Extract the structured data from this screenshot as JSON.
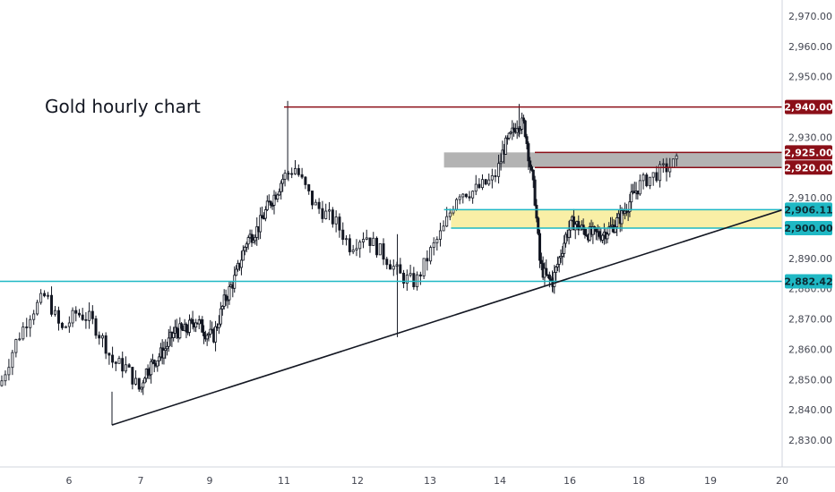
{
  "chart_data": {
    "type": "candlestick",
    "title": "Gold hourly chart",
    "xlabel": "",
    "ylabel": "",
    "ylim": [
      2822,
      2980
    ],
    "xlim": [
      5.1,
      20.0
    ],
    "y_ticks": [
      "2,830.00",
      "2,840.00",
      "2,850.00",
      "2,860.00",
      "2,870.00",
      "2,880.00",
      "2,890.00",
      "2,900.00",
      "2,910.00",
      "2,920.00",
      "2,930.00",
      "2,940.00",
      "2,950.00",
      "2,960.00",
      "2,970.00"
    ],
    "y_tick_values": [
      2830,
      2840,
      2850,
      2860,
      2870,
      2880,
      2890,
      2900,
      2910,
      2920,
      2930,
      2940,
      2950,
      2960,
      2970
    ],
    "x_ticks": [
      "6",
      "7",
      "9",
      "11",
      "12",
      "13",
      "14",
      "16",
      "18",
      "19",
      "20"
    ],
    "x_tick_values": [
      6,
      7,
      9,
      11,
      12,
      13,
      14,
      16,
      18,
      19,
      20
    ],
    "grid": false,
    "price_path": [
      [
        5.1,
        2848
      ],
      [
        5.3,
        2862
      ],
      [
        5.5,
        2872
      ],
      [
        5.7,
        2878
      ],
      [
        5.9,
        2866
      ],
      [
        6.1,
        2872
      ],
      [
        6.3,
        2870
      ],
      [
        6.5,
        2862
      ],
      [
        6.6,
        2856
      ],
      [
        6.8,
        2854
      ],
      [
        7.0,
        2846
      ],
      [
        7.1,
        2852
      ],
      [
        7.4,
        2856
      ],
      [
        7.7,
        2860
      ],
      [
        8.0,
        2866
      ],
      [
        8.3,
        2866
      ],
      [
        8.6,
        2870
      ],
      [
        8.85,
        2866
      ],
      [
        9.1,
        2864
      ],
      [
        9.4,
        2876
      ],
      [
        9.7,
        2884
      ],
      [
        10.0,
        2896
      ],
      [
        10.3,
        2900
      ],
      [
        10.6,
        2908
      ],
      [
        10.8,
        2912
      ],
      [
        10.95,
        2916
      ],
      [
        11.15,
        2920
      ],
      [
        11.4,
        2908
      ],
      [
        11.7,
        2902
      ],
      [
        11.9,
        2894
      ],
      [
        12.1,
        2898
      ],
      [
        12.4,
        2890
      ],
      [
        12.6,
        2884
      ],
      [
        12.8,
        2882
      ],
      [
        13.0,
        2892
      ],
      [
        13.2,
        2900
      ],
      [
        13.4,
        2912
      ],
      [
        13.6,
        2912
      ],
      [
        13.9,
        2916
      ],
      [
        14.1,
        2926
      ],
      [
        14.3,
        2930
      ],
      [
        14.5,
        2935
      ],
      [
        14.7,
        2934
      ],
      [
        14.85,
        2922
      ],
      [
        15.0,
        2910
      ],
      [
        15.15,
        2888
      ],
      [
        15.3,
        2884
      ],
      [
        15.5,
        2882
      ],
      [
        15.7,
        2890
      ],
      [
        15.9,
        2898
      ],
      [
        16.1,
        2902
      ],
      [
        16.3,
        2900
      ],
      [
        16.6,
        2898
      ],
      [
        16.9,
        2898
      ],
      [
        17.2,
        2900
      ],
      [
        17.5,
        2904
      ],
      [
        17.8,
        2910
      ],
      [
        18.1,
        2916
      ],
      [
        18.4,
        2920
      ],
      [
        18.55,
        2922
      ]
    ],
    "candle_color_up": "#ffffff",
    "candle_color_down": "#131722",
    "levels": [
      {
        "label": "2,940.00",
        "value": 2940,
        "color": "#8b0f18",
        "from_x": 11.0
      },
      {
        "label": "2,925.00",
        "value": 2925,
        "color": "#8b0f18",
        "from_x": 15.0
      },
      {
        "label": "2,920.00",
        "value": 2920,
        "color": "#8b0f18",
        "from_x": 15.0
      },
      {
        "label": "2,906.11",
        "value": 2906.11,
        "color": "#1fb8c4",
        "from_x": 13.2
      },
      {
        "label": "2,900.00",
        "value": 2900,
        "color": "#1fb8c4",
        "from_x": 13.3
      },
      {
        "label": "2,882.42",
        "value": 2882.42,
        "color": "#1fb8c4",
        "from_x": 5.1
      }
    ],
    "zones": [
      {
        "name": "resistance-zone",
        "x0": 13.2,
        "x1": 20.0,
        "y0": 2920,
        "y1": 2925,
        "color": "#9a9a9a",
        "opacity": 0.75
      },
      {
        "name": "support-zone",
        "x0": 13.3,
        "x1": 20.0,
        "y0": 2900,
        "y1": 2906.11,
        "color": "#f5e56b",
        "opacity": 0.6
      }
    ],
    "trendline": {
      "x0": 6.6,
      "y0": 2835,
      "x1": 20.0,
      "y1": 2906
    },
    "annotations": []
  }
}
